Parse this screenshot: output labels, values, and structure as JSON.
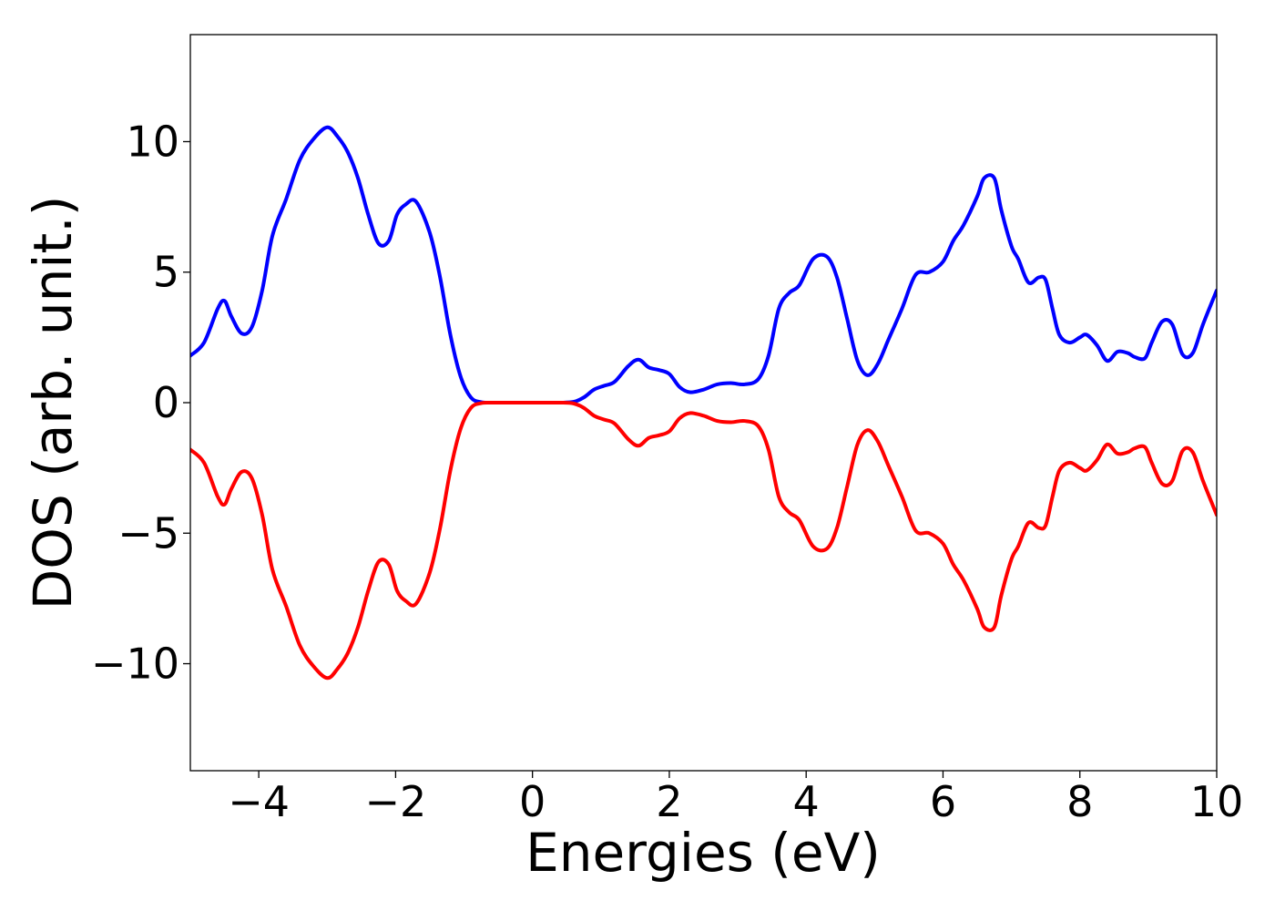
{
  "chart_data": {
    "type": "line",
    "title": "",
    "xlabel": "Energies (eV)",
    "ylabel": "DOS (arb. unit.)",
    "xlim": [
      -5,
      10
    ],
    "ylim": [
      -14.1,
      14.1
    ],
    "grid": false,
    "legend": "none",
    "x_ticks": [
      {
        "value": -4,
        "label": "−4"
      },
      {
        "value": -2,
        "label": "−2"
      },
      {
        "value": 0,
        "label": "0"
      },
      {
        "value": 2,
        "label": "2"
      },
      {
        "value": 4,
        "label": "4"
      },
      {
        "value": 6,
        "label": "6"
      },
      {
        "value": 8,
        "label": "8"
      },
      {
        "value": 10,
        "label": "10"
      }
    ],
    "y_ticks": [
      {
        "value": -10,
        "label": "−10"
      },
      {
        "value": -5,
        "label": "−5"
      },
      {
        "value": 0,
        "label": "0"
      },
      {
        "value": 5,
        "label": "5"
      },
      {
        "value": 10,
        "label": "10"
      }
    ],
    "series": [
      {
        "color": "#0000ff",
        "x": [
          -5.0,
          -4.8,
          -4.6,
          -4.5,
          -4.4,
          -4.25,
          -4.1,
          -3.95,
          -3.8,
          -3.6,
          -3.4,
          -3.2,
          -3.0,
          -2.85,
          -2.7,
          -2.55,
          -2.4,
          -2.25,
          -2.1,
          -1.98,
          -1.85,
          -1.7,
          -1.5,
          -1.35,
          -1.2,
          -1.05,
          -0.9,
          -0.75,
          -0.6,
          -0.4,
          -0.2,
          0.0,
          0.2,
          0.4,
          0.6,
          0.75,
          0.9,
          1.05,
          1.2,
          1.4,
          1.55,
          1.7,
          1.85,
          2.0,
          2.15,
          2.3,
          2.5,
          2.7,
          2.9,
          3.1,
          3.3,
          3.45,
          3.6,
          3.75,
          3.9,
          4.1,
          4.3,
          4.45,
          4.6,
          4.75,
          4.9,
          5.05,
          5.2,
          5.4,
          5.6,
          5.8,
          6.0,
          6.15,
          6.3,
          6.5,
          6.6,
          6.75,
          6.85,
          7.0,
          7.1,
          7.25,
          7.4,
          7.5,
          7.6,
          7.7,
          7.85,
          8.0,
          8.1,
          8.25,
          8.4,
          8.55,
          8.7,
          8.8,
          8.95,
          9.05,
          9.2,
          9.35,
          9.5,
          9.65,
          9.8,
          10.0
        ],
        "y": [
          1.8,
          2.3,
          3.6,
          3.9,
          3.3,
          2.65,
          2.9,
          4.3,
          6.4,
          7.8,
          9.3,
          10.1,
          10.55,
          10.2,
          9.6,
          8.6,
          7.2,
          6.1,
          6.2,
          7.2,
          7.6,
          7.7,
          6.5,
          4.8,
          2.6,
          1.0,
          0.2,
          0.02,
          0.0,
          0.0,
          0.0,
          0.0,
          0.0,
          0.0,
          0.03,
          0.2,
          0.5,
          0.65,
          0.8,
          1.4,
          1.65,
          1.35,
          1.25,
          1.1,
          0.6,
          0.4,
          0.5,
          0.7,
          0.75,
          0.7,
          0.9,
          1.8,
          3.6,
          4.2,
          4.5,
          5.5,
          5.6,
          4.8,
          3.2,
          1.6,
          1.05,
          1.5,
          2.4,
          3.6,
          4.9,
          5.0,
          5.4,
          6.2,
          6.8,
          7.9,
          8.6,
          8.6,
          7.4,
          6.0,
          5.5,
          4.6,
          4.8,
          4.7,
          3.6,
          2.6,
          2.3,
          2.5,
          2.6,
          2.2,
          1.6,
          1.95,
          1.9,
          1.75,
          1.7,
          2.3,
          3.1,
          3.0,
          1.85,
          1.9,
          3.0,
          4.3
        ]
      },
      {
        "color": "#ff0000",
        "x": [
          -5.0,
          -4.8,
          -4.6,
          -4.5,
          -4.4,
          -4.25,
          -4.1,
          -3.95,
          -3.8,
          -3.6,
          -3.4,
          -3.2,
          -3.0,
          -2.85,
          -2.7,
          -2.55,
          -2.4,
          -2.25,
          -2.1,
          -1.98,
          -1.85,
          -1.7,
          -1.5,
          -1.35,
          -1.2,
          -1.05,
          -0.9,
          -0.75,
          -0.6,
          -0.4,
          -0.2,
          0.0,
          0.2,
          0.4,
          0.6,
          0.75,
          0.9,
          1.05,
          1.2,
          1.4,
          1.55,
          1.7,
          1.85,
          2.0,
          2.15,
          2.3,
          2.5,
          2.7,
          2.9,
          3.1,
          3.3,
          3.45,
          3.6,
          3.75,
          3.9,
          4.1,
          4.3,
          4.45,
          4.6,
          4.75,
          4.9,
          5.05,
          5.2,
          5.4,
          5.6,
          5.8,
          6.0,
          6.15,
          6.3,
          6.5,
          6.6,
          6.75,
          6.85,
          7.0,
          7.1,
          7.25,
          7.4,
          7.5,
          7.6,
          7.7,
          7.85,
          8.0,
          8.1,
          8.25,
          8.4,
          8.55,
          8.7,
          8.8,
          8.95,
          9.05,
          9.2,
          9.35,
          9.5,
          9.65,
          9.8,
          10.0
        ],
        "y": [
          -1.8,
          -2.3,
          -3.6,
          -3.9,
          -3.3,
          -2.65,
          -2.9,
          -4.3,
          -6.4,
          -7.8,
          -9.3,
          -10.1,
          -10.55,
          -10.2,
          -9.6,
          -8.6,
          -7.2,
          -6.1,
          -6.2,
          -7.2,
          -7.6,
          -7.7,
          -6.5,
          -4.8,
          -2.6,
          -1.0,
          -0.2,
          -0.02,
          0.0,
          0.0,
          0.0,
          0.0,
          0.0,
          0.0,
          -0.03,
          -0.2,
          -0.5,
          -0.65,
          -0.8,
          -1.4,
          -1.65,
          -1.35,
          -1.25,
          -1.1,
          -0.6,
          -0.4,
          -0.5,
          -0.7,
          -0.75,
          -0.7,
          -0.9,
          -1.8,
          -3.6,
          -4.2,
          -4.5,
          -5.5,
          -5.6,
          -4.8,
          -3.2,
          -1.6,
          -1.05,
          -1.5,
          -2.4,
          -3.6,
          -4.9,
          -5.0,
          -5.4,
          -6.2,
          -6.8,
          -7.9,
          -8.6,
          -8.6,
          -7.4,
          -6.0,
          -5.5,
          -4.6,
          -4.8,
          -4.7,
          -3.6,
          -2.6,
          -2.3,
          -2.5,
          -2.6,
          -2.2,
          -1.6,
          -1.95,
          -1.9,
          -1.75,
          -1.7,
          -2.3,
          -3.1,
          -3.0,
          -1.85,
          -1.9,
          -3.0,
          -4.3
        ]
      }
    ]
  }
}
